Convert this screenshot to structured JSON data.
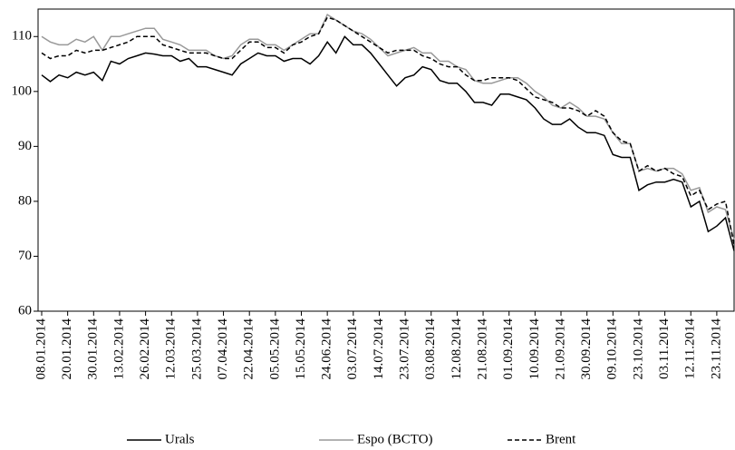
{
  "chart_data": {
    "type": "line",
    "categories": [
      "08.01.2014",
      null,
      null,
      "20.01.2014",
      null,
      null,
      "30.01.2014",
      null,
      null,
      "13.02.2014",
      null,
      null,
      "26.02.2014",
      null,
      null,
      "12.03.2014",
      null,
      null,
      "25.03.2014",
      null,
      null,
      "07.04.2014",
      null,
      null,
      "22.04.2014",
      null,
      null,
      "05.05.2014",
      null,
      null,
      "15.05.2014",
      null,
      null,
      "24.06.2014",
      null,
      null,
      "03.07.2014",
      null,
      null,
      "14.07.2014",
      null,
      null,
      "23.07.2014",
      null,
      null,
      "03.08.2014",
      null,
      null,
      "12.08.2014",
      null,
      null,
      "21.08.2014",
      null,
      null,
      "01.09.2014",
      null,
      null,
      "10.09.2014",
      null,
      null,
      "21.09.2014",
      null,
      null,
      "30.09.2014",
      null,
      null,
      "09.10.2014",
      null,
      null,
      "23.10.2014",
      null,
      null,
      "03.11.2014",
      null,
      null,
      "12.11.2014",
      null,
      null,
      "23.11.2014",
      null,
      null
    ],
    "series": [
      {
        "name": "Urals",
        "color": "#000000",
        "dash": false,
        "values": [
          103,
          101.8,
          103,
          102.5,
          103.5,
          103,
          103.5,
          102,
          105.5,
          105,
          106,
          106.5,
          107,
          106.8,
          106.5,
          106.5,
          105.5,
          106,
          104.5,
          104.5,
          104,
          103.5,
          103,
          105,
          106,
          107,
          106.5,
          106.5,
          105.5,
          106,
          106,
          105,
          106.5,
          109,
          107,
          110,
          108.5,
          108.5,
          107,
          105,
          103,
          101,
          102.5,
          103,
          104.5,
          104,
          102,
          101.5,
          101.5,
          100,
          98,
          98,
          97.5,
          99.5,
          99.5,
          99,
          98.5,
          97,
          95,
          94,
          94,
          95,
          93.5,
          92.5,
          92.5,
          92,
          88.5,
          88,
          88,
          82,
          83,
          83.5,
          83.5,
          84,
          83.5,
          79,
          80,
          74.5,
          75.5,
          77,
          71
        ]
      },
      {
        "name": "Espo (ВСТО)",
        "color": "#999999",
        "dash": false,
        "values": [
          110,
          109,
          108.5,
          108.5,
          109.5,
          109,
          110,
          107.5,
          110,
          110,
          110.5,
          111,
          111.5,
          111.5,
          109.5,
          109,
          108.5,
          107.5,
          107.5,
          107.5,
          106.5,
          106,
          106.5,
          108.5,
          109.5,
          109.5,
          108.5,
          108.5,
          107.5,
          108.5,
          109.5,
          110.5,
          110.5,
          114,
          113,
          112,
          111,
          110.5,
          109.5,
          108,
          106.5,
          107,
          107.5,
          108,
          107,
          107,
          105.5,
          105.5,
          104.5,
          104,
          102,
          101.5,
          101.5,
          102,
          102.5,
          102.5,
          101.5,
          100,
          99,
          97.5,
          97,
          98,
          97,
          95.5,
          95.5,
          95,
          92.5,
          90.5,
          90.5,
          85.5,
          86,
          85.5,
          86,
          86,
          85,
          82,
          82.5,
          78,
          79,
          78.5,
          73
        ]
      },
      {
        "name": "Brent",
        "color": "#000000",
        "dash": true,
        "values": [
          107,
          106,
          106.5,
          106.5,
          107.5,
          107,
          107.5,
          107.5,
          108,
          108.5,
          109,
          110,
          110,
          110,
          108.5,
          108,
          107.5,
          107,
          107,
          107,
          106.5,
          106,
          106,
          107.5,
          109,
          109,
          108,
          108,
          107,
          108.5,
          109,
          110,
          110.5,
          113.5,
          113,
          112,
          111,
          110,
          109,
          108,
          107,
          107.5,
          107.5,
          107.5,
          106.5,
          106,
          105,
          104.5,
          104.5,
          103,
          102,
          102,
          102.5,
          102.5,
          102.5,
          102,
          100.5,
          99,
          98.5,
          98,
          97,
          97,
          96.5,
          95.5,
          96.5,
          95.5,
          92.5,
          91,
          90.5,
          85.5,
          86.5,
          85.5,
          86,
          85,
          84.5,
          81,
          82,
          78.5,
          79.5,
          80,
          72
        ]
      }
    ],
    "ylim": [
      60,
      115
    ],
    "yticks": [
      60,
      70,
      80,
      90,
      100,
      110
    ],
    "grid": false,
    "legend": "bottom"
  }
}
